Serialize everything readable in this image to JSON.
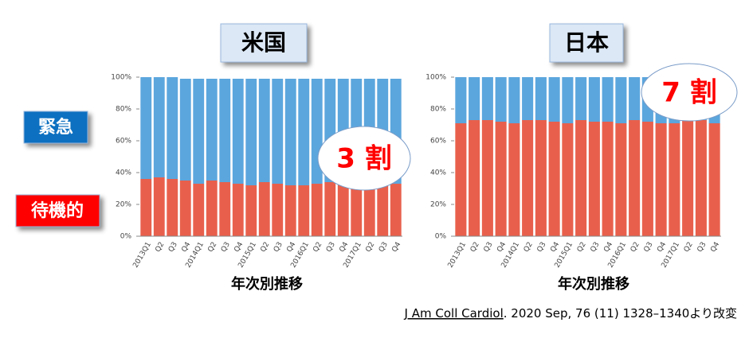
{
  "chart_data": [
    {
      "type": "stacked_bar",
      "title": "米国",
      "x_label": "年次別推移",
      "annotation": "3 割",
      "categories": [
        "2013Q1",
        "Q2",
        "Q3",
        "Q4",
        "2014Q1",
        "Q2",
        "Q3",
        "Q4",
        "2015Q1",
        "Q2",
        "Q3",
        "Q4",
        "2016Q1",
        "Q2",
        "Q3",
        "Q4",
        "2017Q1",
        "Q2",
        "Q3",
        "Q4"
      ],
      "series": [
        {
          "name": "待機的",
          "color": "#e8604c",
          "values": [
            36,
            37,
            36,
            35,
            33,
            35,
            34,
            33,
            32,
            34,
            33,
            32,
            32,
            33,
            34,
            33,
            33,
            33,
            33,
            33
          ]
        },
        {
          "name": "緊急",
          "color": "#5ba6dd",
          "values": [
            64,
            63,
            64,
            64,
            66,
            64,
            65,
            66,
            67,
            65,
            66,
            67,
            67,
            66,
            65,
            66,
            66,
            66,
            66,
            66
          ]
        }
      ],
      "ylim": [
        0,
        100
      ],
      "yticks": [
        {
          "value": 0,
          "label": "0%"
        },
        {
          "value": 20,
          "label": "20%"
        },
        {
          "value": 40,
          "label": "40%"
        },
        {
          "value": 60,
          "label": "60%"
        },
        {
          "value": 80,
          "label": "80%"
        },
        {
          "value": 100,
          "label": "100%"
        }
      ]
    },
    {
      "type": "stacked_bar",
      "title": "日本",
      "x_label": "年次別推移",
      "annotation": "7 割",
      "categories": [
        "2013Q1",
        "Q2",
        "Q3",
        "Q4",
        "2014Q1",
        "Q2",
        "Q3",
        "Q4",
        "2015Q1",
        "Q2",
        "Q3",
        "Q4",
        "2016Q1",
        "Q2",
        "Q3",
        "Q4",
        "2017Q1",
        "Q2",
        "Q3",
        "Q4"
      ],
      "series": [
        {
          "color": "#e8604c",
          "values": [
            71,
            73,
            73,
            72,
            71,
            73,
            73,
            72,
            71,
            73,
            72,
            72,
            71,
            73,
            72,
            71,
            71,
            73,
            73,
            71
          ]
        },
        {
          "color": "#5ba6dd",
          "values": [
            29,
            27,
            27,
            28,
            29,
            27,
            27,
            28,
            29,
            27,
            28,
            28,
            29,
            27,
            28,
            29,
            29,
            27,
            27,
            29
          ]
        }
      ],
      "ylim": [
        0,
        100
      ],
      "yticks": [
        {
          "value": 0,
          "label": "0%"
        },
        {
          "value": 20,
          "label": "20%"
        },
        {
          "value": 40,
          "label": "40%"
        },
        {
          "value": 60,
          "label": "60%"
        },
        {
          "value": 80,
          "label": "80%"
        },
        {
          "value": 100,
          "label": "100%"
        }
      ]
    }
  ],
  "citation": {
    "journal": "J Am Coll Cardiol",
    "rest": ". 2020 Sep, 76 (11) 1328–1340より改変"
  }
}
